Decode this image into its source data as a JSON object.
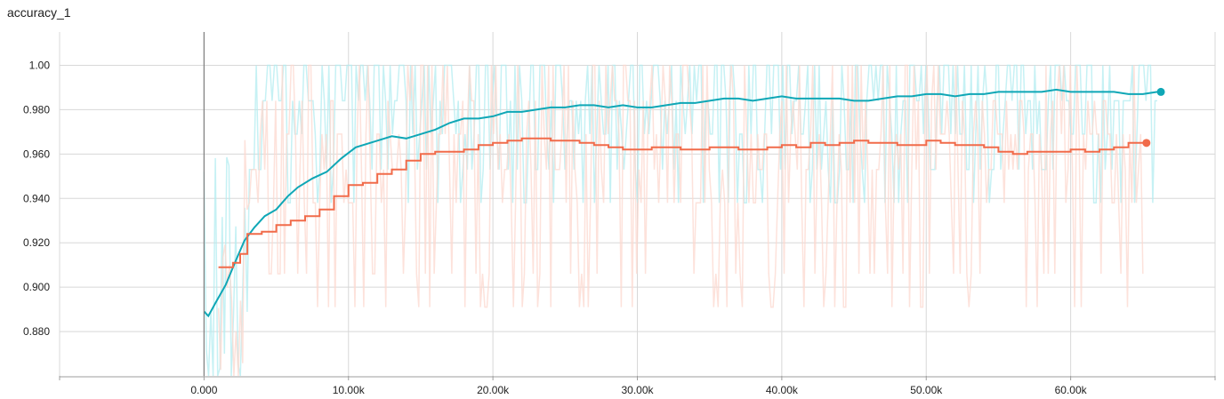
{
  "chart_data": {
    "type": "line",
    "title": "accuracy_1",
    "xlabel": "",
    "ylabel": "",
    "xlim": [
      -10000,
      70000
    ],
    "ylim": [
      0.86,
      1.015
    ],
    "x_ticks": [
      0,
      10000,
      20000,
      30000,
      40000,
      50000,
      60000
    ],
    "x_tick_labels": [
      "0.000",
      "10.00k",
      "20.00k",
      "30.00k",
      "40.00k",
      "50.00k",
      "60.00k"
    ],
    "y_ticks": [
      0.88,
      0.9,
      0.92,
      0.94,
      0.96,
      0.98,
      1.0
    ],
    "y_tick_labels": [
      "0.880",
      "0.900",
      "0.920",
      "0.940",
      "0.960",
      "0.980",
      "1.00"
    ],
    "grid": true,
    "cursor_line_x": 0,
    "series": [
      {
        "color": "#0fa7b6",
        "raw_color": "#b3ecf0",
        "step": false,
        "marker_end": true,
        "points": [
          [
            0,
            0.889
          ],
          [
            300,
            0.887
          ],
          [
            800,
            0.893
          ],
          [
            1500,
            0.901
          ],
          [
            2200,
            0.912
          ],
          [
            2800,
            0.921
          ],
          [
            3500,
            0.927
          ],
          [
            4200,
            0.932
          ],
          [
            5000,
            0.935
          ],
          [
            5800,
            0.941
          ],
          [
            6500,
            0.945
          ],
          [
            7500,
            0.949
          ],
          [
            8500,
            0.952
          ],
          [
            9500,
            0.958
          ],
          [
            10500,
            0.963
          ],
          [
            12000,
            0.966
          ],
          [
            13000,
            0.968
          ],
          [
            14000,
            0.967
          ],
          [
            15000,
            0.969
          ],
          [
            16000,
            0.971
          ],
          [
            17000,
            0.974
          ],
          [
            18000,
            0.976
          ],
          [
            19000,
            0.976
          ],
          [
            20000,
            0.977
          ],
          [
            21000,
            0.979
          ],
          [
            22000,
            0.979
          ],
          [
            23000,
            0.98
          ],
          [
            24000,
            0.981
          ],
          [
            25000,
            0.981
          ],
          [
            26000,
            0.982
          ],
          [
            27000,
            0.982
          ],
          [
            28000,
            0.981
          ],
          [
            29000,
            0.982
          ],
          [
            30000,
            0.981
          ],
          [
            31000,
            0.981
          ],
          [
            32000,
            0.982
          ],
          [
            33000,
            0.983
          ],
          [
            34000,
            0.983
          ],
          [
            35000,
            0.984
          ],
          [
            36000,
            0.985
          ],
          [
            37000,
            0.985
          ],
          [
            38000,
            0.984
          ],
          [
            39000,
            0.985
          ],
          [
            40000,
            0.986
          ],
          [
            41000,
            0.985
          ],
          [
            42000,
            0.985
          ],
          [
            43000,
            0.985
          ],
          [
            44000,
            0.985
          ],
          [
            45000,
            0.984
          ],
          [
            46000,
            0.984
          ],
          [
            47000,
            0.985
          ],
          [
            48000,
            0.986
          ],
          [
            49000,
            0.986
          ],
          [
            50000,
            0.987
          ],
          [
            51000,
            0.987
          ],
          [
            52000,
            0.986
          ],
          [
            53000,
            0.987
          ],
          [
            54000,
            0.987
          ],
          [
            55000,
            0.988
          ],
          [
            56000,
            0.988
          ],
          [
            57000,
            0.988
          ],
          [
            58000,
            0.988
          ],
          [
            59000,
            0.989
          ],
          [
            60000,
            0.988
          ],
          [
            61000,
            0.988
          ],
          [
            62000,
            0.988
          ],
          [
            63000,
            0.988
          ],
          [
            64000,
            0.987
          ],
          [
            65000,
            0.987
          ],
          [
            66000,
            0.988
          ]
        ]
      },
      {
        "color": "#f16b4a",
        "raw_color": "#fcd8cf",
        "step": true,
        "marker_end": true,
        "points": [
          [
            1000,
            0.909
          ],
          [
            2000,
            0.911
          ],
          [
            2500,
            0.915
          ],
          [
            3000,
            0.924
          ],
          [
            4000,
            0.925
          ],
          [
            5000,
            0.928
          ],
          [
            6000,
            0.93
          ],
          [
            7000,
            0.932
          ],
          [
            8000,
            0.935
          ],
          [
            9000,
            0.941
          ],
          [
            10000,
            0.946
          ],
          [
            11000,
            0.947
          ],
          [
            12000,
            0.951
          ],
          [
            13000,
            0.953
          ],
          [
            14000,
            0.957
          ],
          [
            15000,
            0.96
          ],
          [
            16000,
            0.961
          ],
          [
            17000,
            0.961
          ],
          [
            18000,
            0.962
          ],
          [
            19000,
            0.964
          ],
          [
            20000,
            0.965
          ],
          [
            21000,
            0.966
          ],
          [
            22000,
            0.967
          ],
          [
            23000,
            0.967
          ],
          [
            24000,
            0.966
          ],
          [
            25000,
            0.966
          ],
          [
            26000,
            0.965
          ],
          [
            27000,
            0.964
          ],
          [
            28000,
            0.963
          ],
          [
            29000,
            0.962
          ],
          [
            30000,
            0.962
          ],
          [
            31000,
            0.963
          ],
          [
            32000,
            0.963
          ],
          [
            33000,
            0.962
          ],
          [
            34000,
            0.962
          ],
          [
            35000,
            0.963
          ],
          [
            36000,
            0.963
          ],
          [
            37000,
            0.962
          ],
          [
            38000,
            0.962
          ],
          [
            39000,
            0.963
          ],
          [
            40000,
            0.964
          ],
          [
            41000,
            0.963
          ],
          [
            42000,
            0.965
          ],
          [
            43000,
            0.964
          ],
          [
            44000,
            0.965
          ],
          [
            45000,
            0.966
          ],
          [
            46000,
            0.965
          ],
          [
            47000,
            0.965
          ],
          [
            48000,
            0.964
          ],
          [
            49000,
            0.964
          ],
          [
            50000,
            0.966
          ],
          [
            51000,
            0.965
          ],
          [
            52000,
            0.964
          ],
          [
            53000,
            0.964
          ],
          [
            54000,
            0.963
          ],
          [
            55000,
            0.961
          ],
          [
            56000,
            0.96
          ],
          [
            57000,
            0.961
          ],
          [
            58000,
            0.961
          ],
          [
            59000,
            0.961
          ],
          [
            60000,
            0.962
          ],
          [
            61000,
            0.961
          ],
          [
            62000,
            0.962
          ],
          [
            63000,
            0.963
          ],
          [
            64000,
            0.965
          ],
          [
            65000,
            0.965
          ]
        ]
      }
    ]
  }
}
